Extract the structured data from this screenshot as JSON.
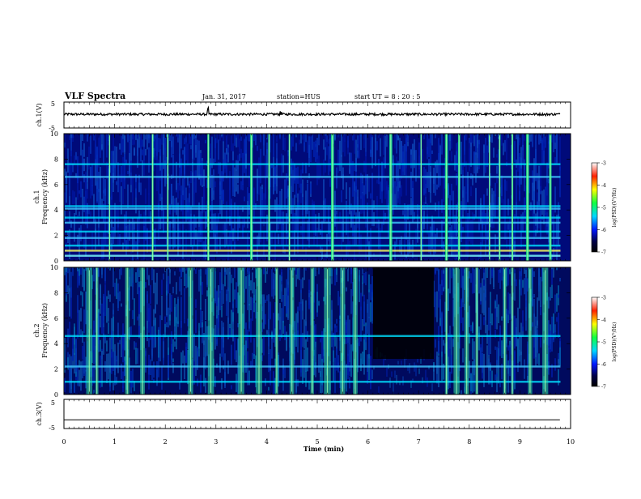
{
  "header": {
    "title": "VLF Spectra",
    "date": "Jan. 31, 2017",
    "station": "station=HUS",
    "start": "start UT = 8 : 20 : 5"
  },
  "chart_data": [
    {
      "type": "line",
      "panel": "ch1-waveform",
      "ylabel": "ch.1(V)",
      "ytick_labels": [
        "5",
        "-5"
      ],
      "ylim": [
        -5,
        5
      ],
      "xlim": [
        0,
        10
      ],
      "series": [
        {
          "values": [
            0.3,
            0.3,
            0.3,
            0.3,
            0.3,
            0.3,
            0.3,
            0.3,
            0.3,
            0.3,
            0.3
          ]
        }
      ],
      "x": [
        0,
        1,
        2,
        3,
        4,
        5,
        6,
        7,
        8,
        9,
        9.8
      ]
    },
    {
      "type": "heatmap",
      "panel": "ch1-spectrogram",
      "ylabel": "ch.1\nFrequency (kHz)",
      "ylim": [
        0,
        10
      ],
      "xlim": [
        0,
        10
      ],
      "yticks": [
        0,
        2,
        4,
        6,
        8,
        10
      ],
      "bands_khz": [
        0.4,
        0.8,
        1.2,
        1.8,
        2.3,
        3.0,
        3.4,
        4.1,
        4.3,
        6.6,
        7.6
      ],
      "bursts_min": [
        0.9,
        1.75,
        2.05,
        2.85,
        3.7,
        4.05,
        4.45,
        5.3,
        6.45,
        7.05,
        7.55,
        7.8,
        8.4,
        8.6,
        8.85,
        9.15,
        9.6
      ],
      "colorbar": {
        "label": "log(PSD)(V²/Hz)",
        "range": [
          -7,
          -3
        ],
        "ticks": [
          "-3",
          "-4",
          "-5",
          "-6",
          "-7"
        ]
      }
    },
    {
      "type": "heatmap",
      "panel": "ch2-spectrogram",
      "ylabel": "ch.2\nFrequency (kHz)",
      "ylim": [
        0,
        10
      ],
      "xlim": [
        0,
        10
      ],
      "yticks": [
        0,
        2,
        4,
        6,
        8,
        10
      ],
      "bands_khz": [
        1.0,
        2.2,
        4.6
      ],
      "bursts_min": [
        0.5,
        0.65,
        1.25,
        1.55,
        2.5,
        2.9,
        3.5,
        3.85,
        4.2,
        4.5,
        4.9,
        5.2,
        5.5,
        5.75,
        7.55,
        7.75,
        7.95,
        8.15,
        8.7,
        8.85,
        9.2,
        9.5
      ],
      "quiet_region_min": [
        6.1,
        7.3
      ],
      "colorbar": {
        "label": "log(PSD)(V²/Hz)",
        "range": [
          -7,
          -3
        ],
        "ticks": [
          "-3",
          "-4",
          "-5",
          "-6",
          "-7"
        ]
      }
    },
    {
      "type": "line",
      "panel": "ch3-waveform",
      "ylabel": "ch.3(V)",
      "ytick_labels": [
        "5",
        "-5"
      ],
      "ylim": [
        -5,
        5
      ],
      "xlim": [
        0,
        10
      ],
      "xlabel": "Time (min)",
      "xticks": [
        "0",
        "1",
        "2",
        "3",
        "4",
        "5",
        "6",
        "7",
        "8",
        "9",
        "10"
      ],
      "series": [
        {
          "values": [
            -2.0,
            -2.0,
            -2.0,
            -2.0,
            -2.0,
            -2.0,
            -2.0,
            -2.0,
            -2.0,
            -2.0,
            -2.0
          ]
        }
      ],
      "x": [
        0,
        1,
        2,
        3,
        4,
        5,
        6,
        7,
        8,
        9,
        9.8
      ]
    }
  ]
}
